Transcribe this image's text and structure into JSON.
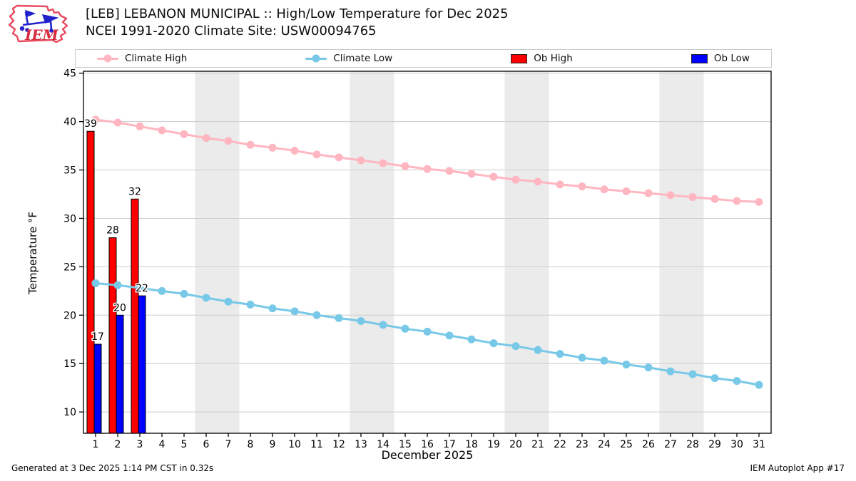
{
  "header": {
    "title": "[LEB] LEBANON MUNICIPAL :: High/Low Temperature for Dec 2025",
    "subtitle": "NCEI 1991-2020 Climate Site: USW00094765"
  },
  "logo": {
    "text": "IEM"
  },
  "legend": {
    "items": [
      {
        "label": "Climate High",
        "type": "line",
        "color": "#ffb6c1"
      },
      {
        "label": "Climate Low",
        "type": "line",
        "color": "#78c8e8"
      },
      {
        "label": "Ob High",
        "type": "box",
        "color": "#fe0000"
      },
      {
        "label": "Ob Low",
        "type": "box",
        "color": "#0000fe"
      }
    ]
  },
  "chart_data": {
    "type": "line+bar",
    "title": "[LEB] LEBANON MUNICIPAL :: High/Low Temperature for Dec 2025",
    "subtitle": "NCEI 1991-2020 Climate Site: USW00094765",
    "xlabel": "December 2025",
    "ylabel": "Temperature °F",
    "x": [
      1,
      2,
      3,
      4,
      5,
      6,
      7,
      8,
      9,
      10,
      11,
      12,
      13,
      14,
      15,
      16,
      17,
      18,
      19,
      20,
      21,
      22,
      23,
      24,
      25,
      26,
      27,
      28,
      29,
      30,
      31
    ],
    "ylim": [
      7.8,
      45.2
    ],
    "yticks": [
      10,
      15,
      20,
      25,
      30,
      35,
      40,
      45
    ],
    "grid": "horizontal",
    "legend_position": "top",
    "weekend_bands": [
      [
        5.5,
        7.5
      ],
      [
        12.5,
        14.5
      ],
      [
        19.5,
        21.5
      ],
      [
        26.5,
        28.5
      ]
    ],
    "band_color": "#ebebeb",
    "series": [
      {
        "name": "Climate High",
        "kind": "line",
        "color": "#ffb6c1",
        "values": [
          40.2,
          39.9,
          39.5,
          39.1,
          38.7,
          38.3,
          38.0,
          37.6,
          37.3,
          37.0,
          36.6,
          36.3,
          36.0,
          35.7,
          35.4,
          35.1,
          34.9,
          34.6,
          34.3,
          34.0,
          33.8,
          33.5,
          33.3,
          33.0,
          32.8,
          32.6,
          32.4,
          32.2,
          32.0,
          31.8,
          31.7
        ]
      },
      {
        "name": "Climate Low",
        "kind": "line",
        "color": "#78c8e8",
        "values": [
          23.3,
          23.1,
          22.8,
          22.5,
          22.2,
          21.8,
          21.4,
          21.1,
          20.7,
          20.4,
          20.0,
          19.7,
          19.4,
          19.0,
          18.6,
          18.3,
          17.9,
          17.5,
          17.1,
          16.8,
          16.4,
          16.0,
          15.6,
          15.3,
          14.9,
          14.6,
          14.2,
          13.9,
          13.5,
          13.2,
          12.8
        ]
      },
      {
        "name": "Ob High",
        "kind": "bar",
        "color": "#fe0000",
        "days": [
          1,
          2,
          3
        ],
        "values": [
          39,
          28,
          32
        ]
      },
      {
        "name": "Ob Low",
        "kind": "bar",
        "color": "#0000fe",
        "days": [
          1,
          2,
          3
        ],
        "values": [
          17,
          20,
          22
        ]
      }
    ]
  },
  "footer": {
    "generated": "Generated at 3 Dec 2025 1:14 PM CST in 0.32s",
    "app": "IEM Autoplot App #17"
  }
}
